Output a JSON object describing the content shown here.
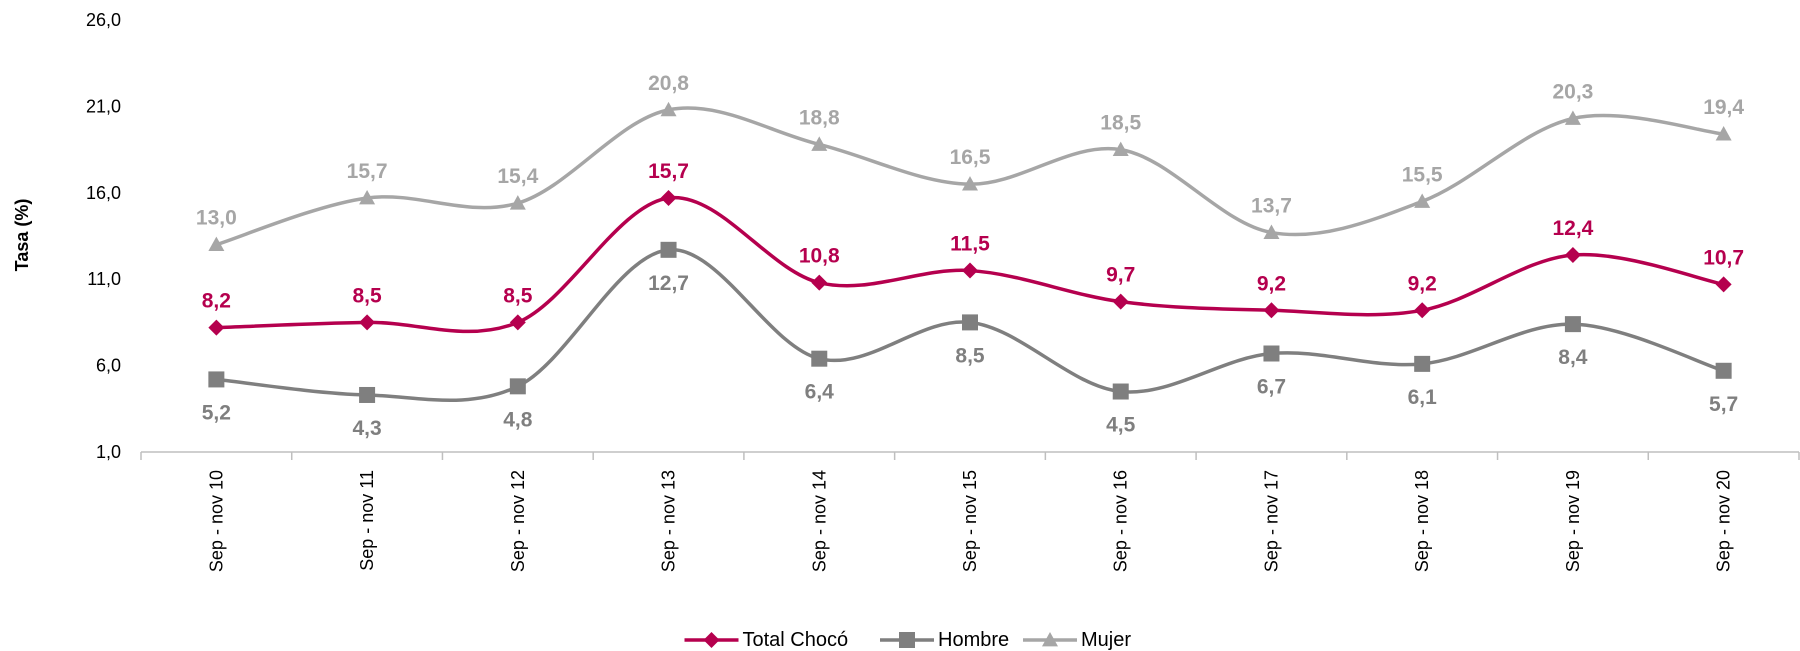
{
  "chart_data": {
    "type": "line",
    "y_label": "Tasa (%)",
    "categories": [
      "Sep - nov 10",
      "Sep - nov 11",
      "Sep - nov 12",
      "Sep - nov 13",
      "Sep - nov 14",
      "Sep - nov 15",
      "Sep - nov 16",
      "Sep - nov 17",
      "Sep - nov 18",
      "Sep - nov 19",
      "Sep - nov 20"
    ],
    "series": [
      {
        "name": "Total Chocó",
        "color": "#b5004e",
        "marker": "diamond",
        "values": [
          8.2,
          8.5,
          8.5,
          15.7,
          10.8,
          11.5,
          9.7,
          9.2,
          9.2,
          12.4,
          10.7
        ],
        "value_labels": [
          "8,2",
          "8,5",
          "8,5",
          "15,7",
          "10,8",
          "11,5",
          "9,7",
          "9,2",
          "9,2",
          "12,4",
          "10,7"
        ],
        "label_position": "above"
      },
      {
        "name": "Hombre",
        "color": "#7f7f7f",
        "marker": "square",
        "values": [
          5.2,
          4.3,
          4.8,
          12.7,
          6.4,
          8.5,
          4.5,
          6.7,
          6.1,
          8.4,
          5.7
        ],
        "value_labels": [
          "5,2",
          "4,3",
          "4,8",
          "12,7",
          "6,4",
          "8,5",
          "4,5",
          "6,7",
          "6,1",
          "8,4",
          "5,7"
        ],
        "label_position": "below"
      },
      {
        "name": "Mujer",
        "color": "#a6a6a6",
        "marker": "triangle",
        "values": [
          13.0,
          15.7,
          15.4,
          20.8,
          18.8,
          16.5,
          18.5,
          13.7,
          15.5,
          20.3,
          19.4
        ],
        "value_labels": [
          "13,0",
          "15,7",
          "15,4",
          "20,8",
          "18,8",
          "16,5",
          "18,5",
          "13,7",
          "15,5",
          "20,3",
          "19,4"
        ],
        "label_position": "above"
      }
    ],
    "ylim": [
      1,
      26
    ],
    "yticks": [
      {
        "value": 1,
        "label": "1,0"
      },
      {
        "value": 6,
        "label": "6,0"
      },
      {
        "value": 11,
        "label": "11,0"
      },
      {
        "value": 16,
        "label": "16,0"
      },
      {
        "value": 21,
        "label": "21,0"
      },
      {
        "value": 26,
        "label": "26,0"
      }
    ],
    "smooth": true,
    "legend": "bottom"
  }
}
